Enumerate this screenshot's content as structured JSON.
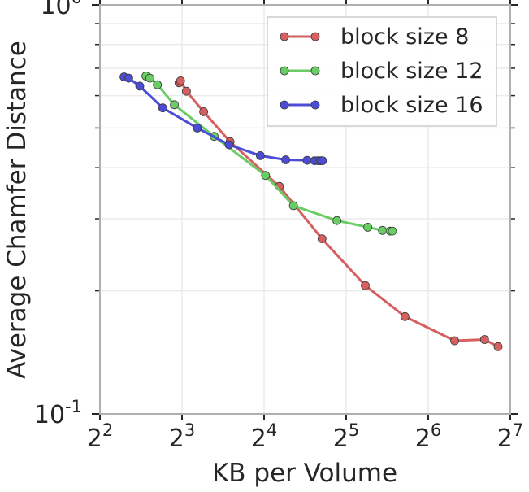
{
  "chart_data": {
    "type": "line",
    "xscale": "log2",
    "yscale": "log10",
    "xlim": [
      4,
      128
    ],
    "ylim": [
      0.1,
      1.0
    ],
    "xlabel": "KB per Volume",
    "ylabel": "Average Chamfer Distance",
    "x_ticks": [
      {
        "value": 4,
        "base": "2",
        "exp": "2"
      },
      {
        "value": 8,
        "base": "2",
        "exp": "3"
      },
      {
        "value": 16,
        "base": "2",
        "exp": "4"
      },
      {
        "value": 32,
        "base": "2",
        "exp": "5"
      },
      {
        "value": 64,
        "base": "2",
        "exp": "6"
      },
      {
        "value": 128,
        "base": "2",
        "exp": "7"
      }
    ],
    "y_ticks": [
      {
        "value": 1.0,
        "base": "10",
        "exp": "0"
      },
      {
        "value": 0.1,
        "base": "10",
        "exp": "-1"
      }
    ],
    "grid": true,
    "legend_position": "top-right",
    "series": [
      {
        "name": "block size 8",
        "color": "#d65f5f",
        "x": [
          7.8,
          7.9,
          8.3,
          9.6,
          12.0,
          18.2,
          26.1,
          37.6,
          52.6,
          80.0,
          103.0,
          115.5
        ],
        "y": [
          0.645,
          0.652,
          0.615,
          0.548,
          0.463,
          0.36,
          0.268,
          0.206,
          0.173,
          0.151,
          0.152,
          0.146
        ]
      },
      {
        "name": "block size 12",
        "color": "#6acc65",
        "x": [
          5.9,
          6.1,
          6.5,
          7.5,
          10.5,
          16.2,
          20.5,
          29.6,
          38.4,
          43.5,
          46.4,
          47.3
        ],
        "y": [
          0.67,
          0.662,
          0.638,
          0.57,
          0.477,
          0.383,
          0.323,
          0.297,
          0.286,
          0.281,
          0.28,
          0.28
        ]
      },
      {
        "name": "block size 16",
        "color": "#4c4cd6",
        "x": [
          4.9,
          5.1,
          5.6,
          6.8,
          9.1,
          11.9,
          15.5,
          19.2,
          23.0,
          24.5,
          25.2,
          25.8,
          26.2
        ],
        "y": [
          0.667,
          0.662,
          0.633,
          0.56,
          0.5,
          0.455,
          0.428,
          0.418,
          0.417,
          0.416,
          0.416,
          0.416,
          0.416
        ]
      }
    ]
  }
}
